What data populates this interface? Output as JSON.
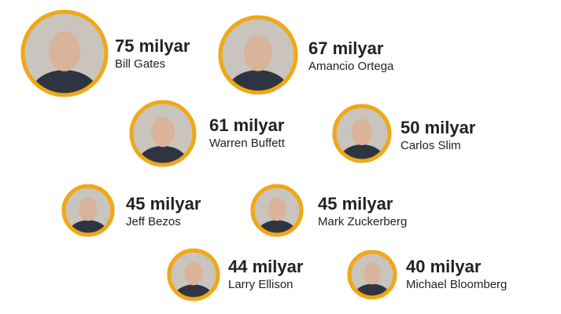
{
  "people": [
    {
      "amount": "75 milyar",
      "name": "Bill Gates"
    },
    {
      "amount": "67 milyar",
      "name": "Amancio Ortega"
    },
    {
      "amount": "61 milyar",
      "name": "Warren Buffett"
    },
    {
      "amount": "50 milyar",
      "name": "Carlos Slim"
    },
    {
      "amount": "45 milyar",
      "name": "Jeff Bezos"
    },
    {
      "amount": "45 milyar",
      "name": "Mark Zuckerberg"
    },
    {
      "amount": "44 milyar",
      "name": "Larry Ellison"
    },
    {
      "amount": "40 milyar",
      "name": "Michael Bloomberg"
    }
  ]
}
